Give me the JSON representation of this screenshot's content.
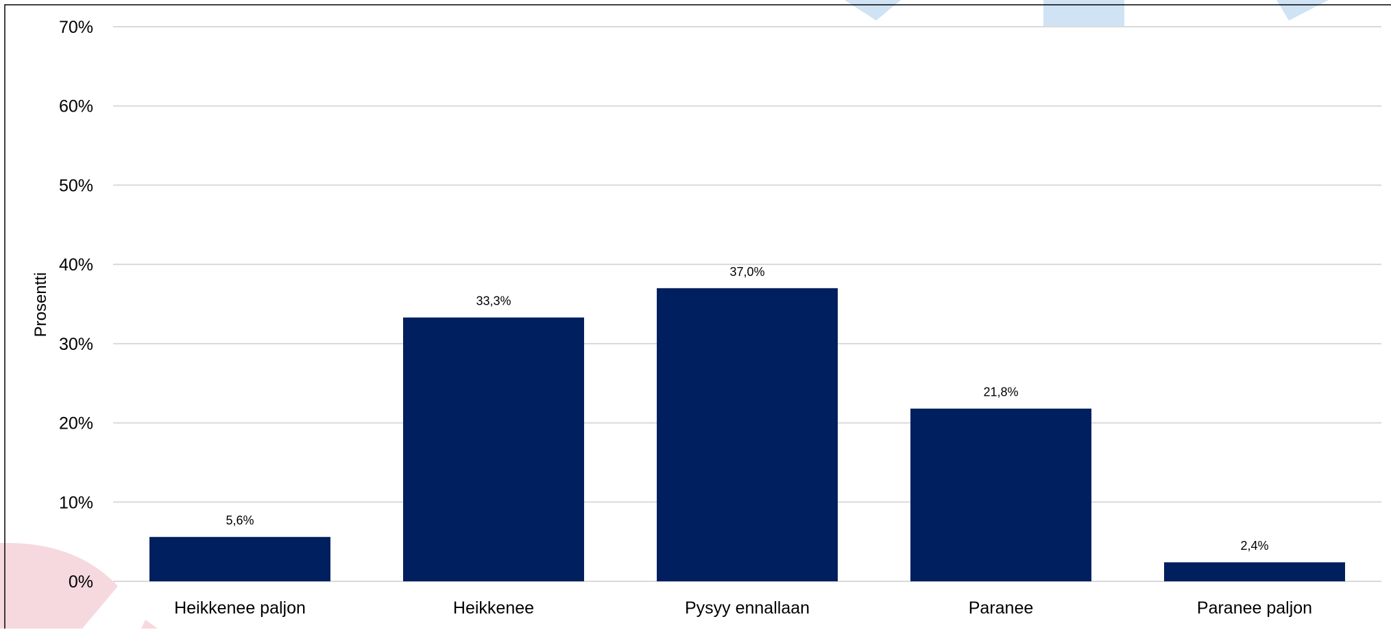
{
  "colors": {
    "bar": "#001f5f",
    "grid": "#d9d9d9",
    "text": "#000000",
    "deco_blue": "#cfe3f4",
    "deco_pink": "#f6d9de"
  },
  "chart_data": {
    "type": "bar",
    "title": "",
    "xlabel": "",
    "ylabel": "Prosentti",
    "ylim": [
      0,
      70
    ],
    "y_ticks": [
      0,
      10,
      20,
      30,
      40,
      50,
      60,
      70
    ],
    "y_tick_labels": [
      "0%",
      "10%",
      "20%",
      "30%",
      "40%",
      "50%",
      "60%",
      "70%"
    ],
    "grid": true,
    "legend": "none",
    "categories": [
      "Heikkenee paljon",
      "Heikkenee",
      "Pysyy ennallaan",
      "Paranee",
      "Paranee paljon"
    ],
    "values": [
      5.6,
      33.3,
      37.0,
      21.8,
      2.4
    ],
    "data_labels": [
      "5,6%",
      "33,3%",
      "37,0%",
      "21,8%",
      "2,4%"
    ]
  }
}
